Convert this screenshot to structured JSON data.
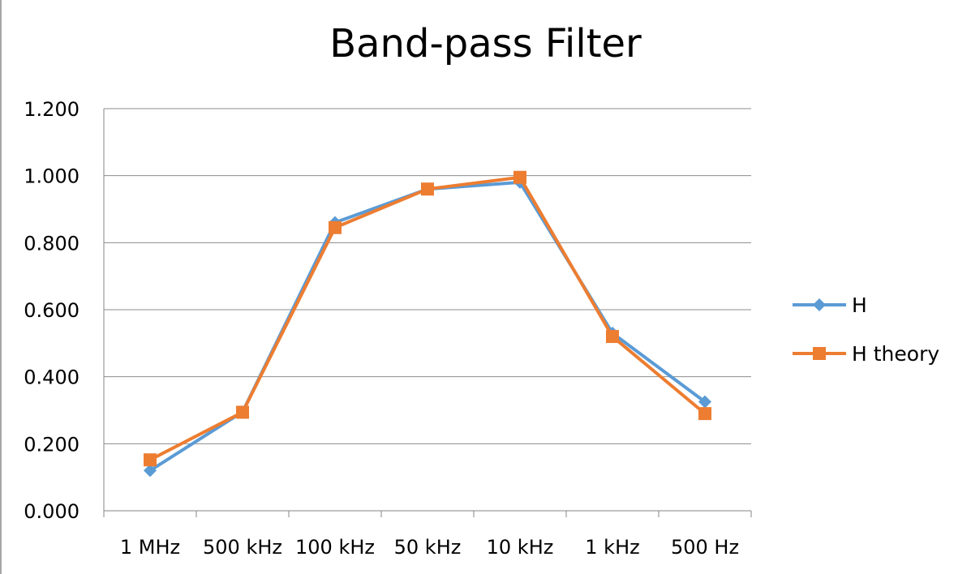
{
  "chart_data": {
    "type": "line",
    "title": "Band-pass Filter",
    "xlabel": "",
    "ylabel": "",
    "categories": [
      "1 MHz",
      "500 kHz",
      "100 kHz",
      "50 kHz",
      "10 kHz",
      "1 kHz",
      "500 Hz"
    ],
    "ylim": [
      0,
      1.2
    ],
    "yticks": [
      "0.000",
      "0.200",
      "0.400",
      "0.600",
      "0.800",
      "1.000",
      "1.200"
    ],
    "ytick_values": [
      0,
      0.2,
      0.4,
      0.6,
      0.8,
      1.0,
      1.2
    ],
    "grid": true,
    "legend_position": "right",
    "series": [
      {
        "name": "H",
        "values": [
          0.12,
          0.295,
          0.86,
          0.96,
          0.98,
          0.53,
          0.325
        ],
        "color": "#5b9bd5",
        "marker": "diamond"
      },
      {
        "name": "H theory",
        "values": [
          0.152,
          0.294,
          0.845,
          0.96,
          0.995,
          0.52,
          0.29
        ],
        "color": "#ed7d31",
        "marker": "square"
      }
    ]
  }
}
